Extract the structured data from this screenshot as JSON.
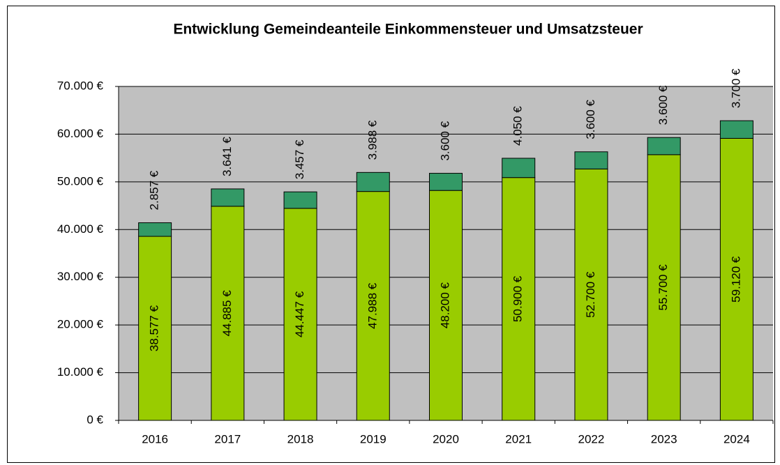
{
  "chart_data": {
    "type": "stacked_bar",
    "title": "Entwicklung Gemeindeanteile Einkommensteuer und Umsatzsteuer",
    "categories": [
      "2016",
      "2017",
      "2018",
      "2019",
      "2020",
      "2021",
      "2022",
      "2023",
      "2024"
    ],
    "series": [
      {
        "color": "#99cc00",
        "values": [
          38577,
          44885,
          44447,
          47988,
          48200,
          50900,
          52700,
          55700,
          59120
        ],
        "value_labels": [
          "38.577 €",
          "44.885 €",
          "44.447 €",
          "47.988 €",
          "48.200 €",
          "50.900 €",
          "52.700 €",
          "55.700 €",
          "59.120 €"
        ]
      },
      {
        "color": "#339966",
        "values": [
          2857,
          3641,
          3457,
          3988,
          3600,
          4050,
          3600,
          3600,
          3700
        ],
        "value_labels": [
          "2.857 €",
          "3.641 €",
          "3.457 €",
          "3.988 €",
          "3.600 €",
          "4.050 €",
          "3.600 €",
          "3.600 €",
          "3.700 €"
        ]
      }
    ],
    "ylim": [
      0,
      70000
    ],
    "yticks": [
      {
        "value": 0,
        "label": "0 €"
      },
      {
        "value": 10000,
        "label": "10.000 €"
      },
      {
        "value": 20000,
        "label": "20.000 €"
      },
      {
        "value": 30000,
        "label": "30.000 €"
      },
      {
        "value": 40000,
        "label": "40.000 €"
      },
      {
        "value": 50000,
        "label": "50.000 €"
      },
      {
        "value": 60000,
        "label": "60.000 €"
      },
      {
        "value": 70000,
        "label": "70.000 €"
      }
    ],
    "grid": true,
    "background": "#c0c0c0"
  }
}
